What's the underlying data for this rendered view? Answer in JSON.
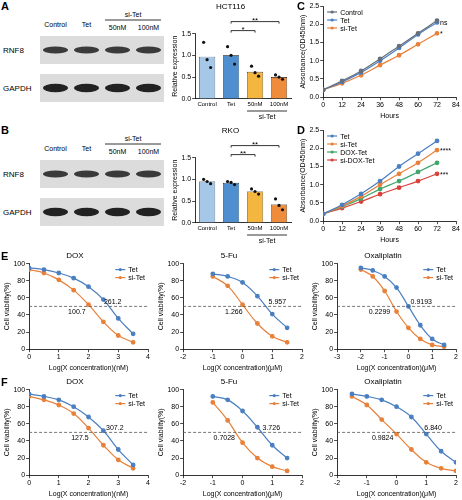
{
  "blots": [
    {
      "panel": "A",
      "proteins": [
        "RNF8",
        "GAPDH"
      ],
      "lanes": [
        "Control",
        "Tet",
        "50nM",
        "100nM"
      ],
      "group_label": "si-Tet",
      "group_lanes": [
        "50nM",
        "100nM"
      ]
    },
    {
      "panel": "B",
      "proteins": [
        "RNF8",
        "GAPDH"
      ],
      "lanes": [
        "Control",
        "Tet",
        "50nM",
        "100nM"
      ],
      "group_label": "si-Tet",
      "group_lanes": [
        "50nM",
        "100nM"
      ]
    }
  ],
  "chart_data": [
    {
      "type": "bar",
      "title": "HCT116",
      "y_label": "Relative expression",
      "categories": [
        "Control",
        "Tet",
        "50nM",
        "100nM"
      ],
      "values": [
        0.97,
        1.0,
        0.62,
        0.5
      ],
      "colors": [
        "#a6c8e8",
        "#4f8fcf",
        "#f5b640",
        "#ef8c3c"
      ],
      "points": [
        [
          1.3,
          0.9,
          0.72
        ],
        [
          1.2,
          1.0,
          0.8
        ],
        [
          0.75,
          0.6,
          0.52
        ],
        [
          0.55,
          0.5,
          0.45
        ]
      ],
      "group_label": "si-Tet",
      "group_categories": [
        "50nM",
        "100nM"
      ],
      "significance": [
        {
          "text": "*",
          "from": "Tet",
          "to": "50nM"
        },
        {
          "text": "**",
          "from": "Tet",
          "to": "100nM"
        }
      ],
      "ylim": [
        0,
        1.5
      ],
      "yticks": [
        {
          "value": 0,
          "label": "0.0"
        },
        0.5,
        {
          "value": 1,
          "label": "1.0"
        },
        1.5
      ],
      "grid": false
    },
    {
      "type": "bar",
      "title": "RKO",
      "y_label": "Relative expression",
      "categories": [
        "Control",
        "Tet",
        "50nM",
        "100nM"
      ],
      "values": [
        0.95,
        0.92,
        0.72,
        0.42
      ],
      "colors": [
        "#a6c8e8",
        "#4f8fcf",
        "#f5b640",
        "#ef8c3c"
      ],
      "points": [
        [
          1.0,
          0.95,
          0.9
        ],
        [
          0.95,
          0.93,
          0.88
        ],
        [
          0.78,
          0.72,
          0.66
        ],
        [
          0.55,
          0.4,
          0.3
        ]
      ],
      "group_label": "si-Tet",
      "group_categories": [
        "50nM",
        "100nM"
      ],
      "significance": [
        {
          "text": "**",
          "from": "Tet",
          "to": "50nM"
        },
        {
          "text": "**",
          "from": "Tet",
          "to": "100nM"
        }
      ],
      "ylim": [
        0,
        1.5
      ],
      "yticks": [
        {
          "value": 0,
          "label": "0.0"
        },
        0.5,
        {
          "value": 1,
          "label": "1.0"
        },
        1.5
      ],
      "grid": false
    },
    {
      "panel": "C",
      "type": "line",
      "x_label": "Hours",
      "y_label": "Absorbance(OD450nm)",
      "x": [
        0,
        12,
        24,
        36,
        48,
        60,
        72
      ],
      "series": [
        {
          "name": "Control",
          "color": "#666f7a",
          "values": [
            0.2,
            0.45,
            0.72,
            1.05,
            1.4,
            1.75,
            2.1
          ]
        },
        {
          "name": "Tet",
          "color": "#4a7fc1",
          "values": [
            0.2,
            0.42,
            0.68,
            1.0,
            1.35,
            1.72,
            2.05
          ]
        },
        {
          "name": "si-Tet",
          "color": "#e8803a",
          "values": [
            0.2,
            0.38,
            0.6,
            0.88,
            1.15,
            1.45,
            1.75
          ]
        }
      ],
      "annotations": [
        {
          "text": "ns",
          "series": "Tet"
        },
        {
          "text": "*",
          "series": "si-Tet"
        }
      ],
      "xlim": [
        0,
        84
      ],
      "xticks": [
        0,
        12,
        24,
        36,
        48,
        60,
        72,
        84
      ],
      "ylim": [
        0,
        2.5
      ],
      "yticks": [
        {
          "value": 0,
          "label": "0.0"
        },
        0.5,
        {
          "value": 1,
          "label": "1.0"
        },
        1.5,
        {
          "value": 2,
          "label": "2.0"
        },
        2.5
      ],
      "legend": "upper left",
      "marker": "circle",
      "grid": false
    },
    {
      "panel": "D",
      "type": "line",
      "x_label": "Hours",
      "y_label": "Absorbance(OD450nm)",
      "x": [
        0,
        12,
        24,
        36,
        48,
        60,
        72
      ],
      "series": [
        {
          "name": "Tet",
          "color": "#4a7fc1",
          "values": [
            0.2,
            0.45,
            0.75,
            1.1,
            1.5,
            1.85,
            2.2
          ]
        },
        {
          "name": "si-Tet",
          "color": "#e8803a",
          "values": [
            0.2,
            0.42,
            0.68,
            1.0,
            1.3,
            1.6,
            1.95
          ]
        },
        {
          "name": "DOX-Tet",
          "color": "#3fa66b",
          "values": [
            0.2,
            0.4,
            0.62,
            0.88,
            1.1,
            1.35,
            1.6
          ]
        },
        {
          "name": "si-DOX-Tet",
          "color": "#d9413a",
          "values": [
            0.2,
            0.36,
            0.54,
            0.74,
            0.92,
            1.1,
            1.3
          ]
        }
      ],
      "annotations": [
        {
          "text": "****",
          "series": "si-Tet"
        },
        {
          "text": "***",
          "series": "si-DOX-Tet"
        }
      ],
      "xlim": [
        0,
        84
      ],
      "xticks": [
        0,
        12,
        24,
        36,
        48,
        60,
        72,
        84
      ],
      "ylim": [
        0,
        2.5
      ],
      "yticks": [
        {
          "value": 0,
          "label": "0.0"
        },
        0.5,
        {
          "value": 1,
          "label": "1.0"
        },
        1.5,
        {
          "value": 2,
          "label": "2.0"
        },
        2.5
      ],
      "legend": "upper left",
      "marker": "circle",
      "grid": false
    },
    {
      "panel": "E",
      "type": "line",
      "title": "DOX",
      "x_label": "Log(X concentration)(nM)",
      "y_label": "Cell viability(%)",
      "x": [
        0,
        0.5,
        1,
        1.5,
        2,
        2.5,
        3,
        3.5
      ],
      "series": [
        {
          "name": "Tet",
          "color": "#4a7fc1",
          "values": [
            95,
            93,
            89,
            83,
            73,
            58,
            36,
            18
          ]
        },
        {
          "name": "si-Tet",
          "color": "#e8803a",
          "values": [
            93,
            89,
            81,
            69,
            52,
            32,
            16,
            8
          ]
        }
      ],
      "threshold": 50,
      "ic50": [
        {
          "series": "Tet",
          "value": 261.2
        },
        {
          "series": "si-Tet",
          "value": 100.7
        }
      ],
      "xlim": [
        0,
        4
      ],
      "xticks": [
        0,
        1,
        2,
        3,
        4
      ],
      "ylim": [
        0,
        100
      ],
      "yticks": [
        0,
        20,
        40,
        60,
        80,
        100
      ],
      "legend": "upper right",
      "marker": "circle",
      "grid": false
    },
    {
      "type": "line",
      "title": "5-Fu",
      "x_label": "Log(X concentration)(μM)",
      "y_label": "Cell viability(%)",
      "x": [
        -1,
        -0.5,
        0,
        0.5,
        1,
        1.5
      ],
      "series": [
        {
          "name": "Tet",
          "color": "#4a7fc1",
          "values": [
            88,
            85,
            78,
            62,
            41,
            25
          ]
        },
        {
          "name": "si-Tet",
          "color": "#e8803a",
          "values": [
            85,
            74,
            52,
            30,
            15,
            8
          ]
        }
      ],
      "threshold": 50,
      "ic50": [
        {
          "series": "Tet",
          "value": 5.957
        },
        {
          "series": "si-Tet",
          "value": 1.266
        }
      ],
      "xlim": [
        -2,
        2
      ],
      "xticks": [
        -2,
        -1,
        0,
        1,
        2
      ],
      "ylim": [
        0,
        100
      ],
      "yticks": [
        0,
        20,
        40,
        60,
        80,
        100
      ],
      "legend": "upper right",
      "marker": "circle",
      "grid": false
    },
    {
      "type": "line",
      "title": "Oxaliplatin",
      "x_label": "Log(X concentration)(μM)",
      "y_label": "Cell viability(%)",
      "x": [
        -2,
        -1.5,
        -1,
        -0.5,
        0,
        0.5,
        1,
        1.5
      ],
      "series": [
        {
          "name": "Tet",
          "color": "#4a7fc1",
          "values": [
            95,
            92,
            85,
            72,
            50,
            28,
            12,
            5
          ]
        },
        {
          "name": "si-Tet",
          "color": "#e8803a",
          "values": [
            93,
            85,
            68,
            44,
            25,
            12,
            5,
            3
          ]
        }
      ],
      "threshold": 50,
      "ic50": [
        {
          "series": "Tet",
          "value": 0.9193
        },
        {
          "series": "si-Tet",
          "value": 0.2299
        }
      ],
      "xlim": [
        -3,
        2
      ],
      "xticks": [
        -3,
        -2,
        -1,
        0,
        1,
        2
      ],
      "ylim": [
        0,
        100
      ],
      "yticks": [
        0,
        20,
        40,
        60,
        80,
        100
      ],
      "legend": "upper right",
      "marker": "circle",
      "grid": false
    },
    {
      "panel": "F",
      "type": "line",
      "title": "DOX",
      "x_label": "Log(X concentration)(nM)",
      "y_label": "Cell viability(%)",
      "x": [
        0,
        0.5,
        1,
        1.5,
        2,
        2.5,
        3,
        3.5
      ],
      "series": [
        {
          "name": "Tet",
          "color": "#4a7fc1",
          "values": [
            95,
            92,
            88,
            80,
            68,
            52,
            30,
            12
          ]
        },
        {
          "name": "si-Tet",
          "color": "#e8803a",
          "values": [
            92,
            88,
            82,
            72,
            55,
            35,
            18,
            8
          ]
        }
      ],
      "threshold": 50,
      "ic50": [
        {
          "series": "Tet",
          "value": 307.2
        },
        {
          "series": "si-Tet",
          "value": 127.5
        }
      ],
      "xlim": [
        0,
        4
      ],
      "xticks": [
        0,
        1,
        2,
        3,
        4
      ],
      "ylim": [
        0,
        100
      ],
      "yticks": [
        0,
        20,
        40,
        60,
        80,
        100
      ],
      "legend": "upper right",
      "marker": "circle",
      "grid": false
    },
    {
      "type": "line",
      "title": "5-Fu",
      "x_label": "Log(X concentration)(μM)",
      "y_label": "Cell viability(%)",
      "x": [
        -1,
        -0.5,
        0,
        0.5,
        1,
        1.5
      ],
      "series": [
        {
          "name": "Tet",
          "color": "#4a7fc1",
          "values": [
            92,
            88,
            75,
            56,
            35,
            20
          ]
        },
        {
          "name": "si-Tet",
          "color": "#e8803a",
          "values": [
            85,
            64,
            38,
            20,
            10,
            5
          ]
        }
      ],
      "threshold": 50,
      "ic50": [
        {
          "series": "Tet",
          "value": 3.726
        },
        {
          "series": "si-Tet",
          "value": 0.7028
        }
      ],
      "xlim": [
        -2,
        2
      ],
      "xticks": [
        -2,
        -1,
        0,
        1,
        2
      ],
      "ylim": [
        0,
        100
      ],
      "yticks": [
        0,
        20,
        40,
        60,
        80,
        100
      ],
      "legend": "upper right",
      "marker": "circle",
      "grid": false
    },
    {
      "type": "line",
      "title": "Oxaliplatin",
      "x_label": "Log(X concentration)(μM)",
      "y_label": "Cell viability(%)",
      "x": [
        -1.5,
        -1,
        -0.5,
        0,
        0.5,
        1,
        1.5,
        2
      ],
      "series": [
        {
          "name": "Tet",
          "color": "#4a7fc1",
          "values": [
            95,
            92,
            88,
            80,
            68,
            48,
            28,
            15
          ]
        },
        {
          "name": "si-Tet",
          "color": "#e8803a",
          "values": [
            92,
            82,
            65,
            48,
            30,
            15,
            8,
            5
          ]
        }
      ],
      "threshold": 50,
      "ic50": [
        {
          "series": "Tet",
          "value": 6.84,
          "label": "6.840"
        },
        {
          "series": "si-Tet",
          "value": 0.9824
        }
      ],
      "xlim": [
        -2,
        2
      ],
      "xticks": [
        -2,
        -1,
        0,
        1,
        2
      ],
      "ylim": [
        0,
        100
      ],
      "yticks": [
        0,
        20,
        40,
        60,
        80,
        100
      ],
      "legend": "upper right",
      "marker": "circle",
      "grid": false
    }
  ]
}
